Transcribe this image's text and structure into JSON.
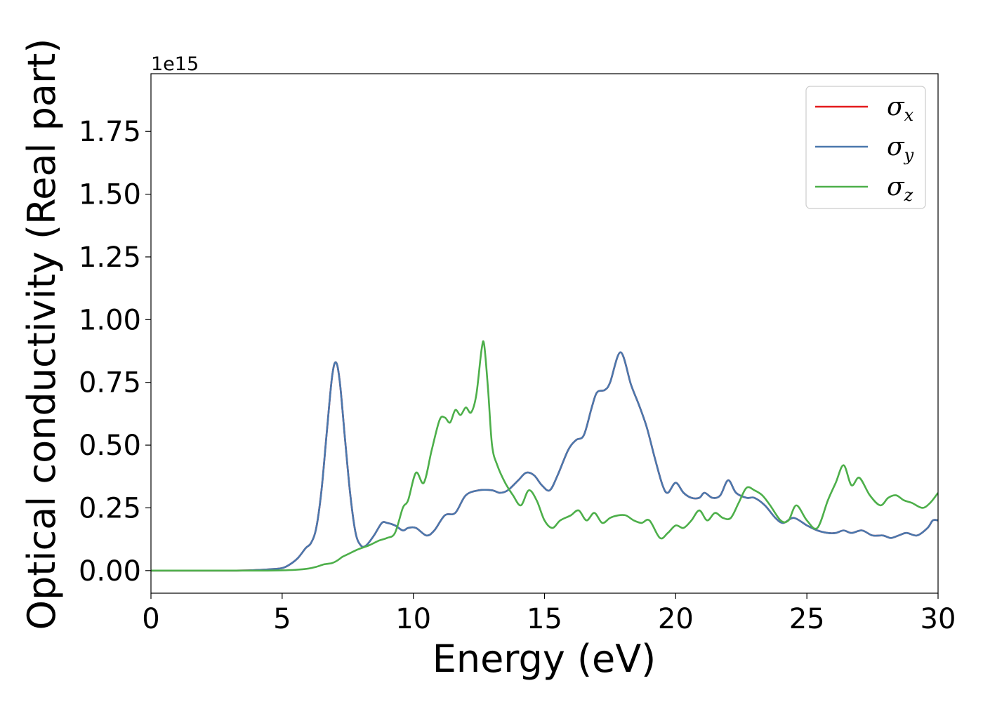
{
  "chart_data": {
    "type": "line",
    "title": "",
    "xlabel": "Energy (eV)",
    "ylabel": "Optical conductivity (Real part)",
    "y_offset_label": "1e15",
    "xlim": [
      0,
      30
    ],
    "ylim": [
      -0.09,
      1.98
    ],
    "x_ticks": [
      0,
      5,
      10,
      15,
      20,
      25,
      30
    ],
    "x_tick_labels": [
      "0",
      "5",
      "10",
      "15",
      "20",
      "25",
      "30"
    ],
    "y_ticks": [
      0.0,
      0.25,
      0.5,
      0.75,
      1.0,
      1.25,
      1.5,
      1.75
    ],
    "y_tick_labels": [
      "0.00",
      "0.25",
      "0.50",
      "0.75",
      "1.00",
      "1.25",
      "1.50",
      "1.75"
    ],
    "grid": false,
    "legend_position": "top-right",
    "series": [
      {
        "name": "σx",
        "legend_symbol": "σ",
        "legend_subscript": "x",
        "color": "#e41a1c",
        "x": [
          0,
          3,
          4,
          4.5,
          5,
          5.3,
          5.6,
          5.9,
          6.1,
          6.3,
          6.5,
          6.7,
          6.9,
          7.05,
          7.2,
          7.4,
          7.6,
          7.8,
          8.0,
          8.2,
          8.5,
          8.8,
          9.0,
          9.3,
          9.6,
          9.8,
          10.1,
          10.5,
          10.8,
          11.2,
          11.6,
          12.0,
          12.5,
          13.0,
          13.3,
          13.6,
          14.0,
          14.3,
          14.6,
          14.9,
          15.2,
          15.5,
          15.9,
          16.2,
          16.5,
          16.8,
          17.0,
          17.3,
          17.5,
          17.9,
          18.3,
          18.6,
          18.9,
          19.2,
          19.5,
          19.7,
          20.0,
          20.3,
          20.6,
          20.9,
          21.1,
          21.4,
          21.7,
          22.0,
          22.3,
          22.7,
          23.0,
          23.4,
          23.8,
          24.1,
          24.5,
          25.0,
          25.4,
          25.8,
          26.1,
          26.4,
          26.7,
          27.1,
          27.5,
          27.9,
          28.2,
          28.5,
          28.8,
          29.2,
          29.6,
          29.8,
          30.0
        ],
        "y": [
          0.0,
          0.0,
          0.002,
          0.005,
          0.01,
          0.025,
          0.05,
          0.09,
          0.11,
          0.17,
          0.32,
          0.55,
          0.77,
          0.83,
          0.75,
          0.52,
          0.3,
          0.15,
          0.1,
          0.1,
          0.14,
          0.19,
          0.19,
          0.18,
          0.16,
          0.17,
          0.17,
          0.14,
          0.16,
          0.22,
          0.23,
          0.3,
          0.32,
          0.32,
          0.31,
          0.32,
          0.36,
          0.39,
          0.38,
          0.34,
          0.32,
          0.38,
          0.48,
          0.52,
          0.54,
          0.65,
          0.71,
          0.72,
          0.75,
          0.87,
          0.74,
          0.66,
          0.57,
          0.45,
          0.34,
          0.31,
          0.35,
          0.31,
          0.29,
          0.29,
          0.31,
          0.29,
          0.3,
          0.36,
          0.31,
          0.29,
          0.29,
          0.26,
          0.21,
          0.19,
          0.21,
          0.18,
          0.16,
          0.15,
          0.15,
          0.16,
          0.15,
          0.16,
          0.14,
          0.14,
          0.13,
          0.14,
          0.15,
          0.14,
          0.17,
          0.2,
          0.2
        ]
      },
      {
        "name": "σy",
        "legend_symbol": "σ",
        "legend_subscript": "y",
        "color": "#4a78ad",
        "x": [
          0,
          3,
          4,
          4.5,
          5,
          5.3,
          5.6,
          5.9,
          6.1,
          6.3,
          6.5,
          6.7,
          6.9,
          7.05,
          7.2,
          7.4,
          7.6,
          7.8,
          8.0,
          8.2,
          8.5,
          8.8,
          9.0,
          9.3,
          9.6,
          9.8,
          10.1,
          10.5,
          10.8,
          11.2,
          11.6,
          12.0,
          12.5,
          13.0,
          13.3,
          13.6,
          14.0,
          14.3,
          14.6,
          14.9,
          15.2,
          15.5,
          15.9,
          16.2,
          16.5,
          16.8,
          17.0,
          17.3,
          17.5,
          17.9,
          18.3,
          18.6,
          18.9,
          19.2,
          19.5,
          19.7,
          20.0,
          20.3,
          20.6,
          20.9,
          21.1,
          21.4,
          21.7,
          22.0,
          22.3,
          22.7,
          23.0,
          23.4,
          23.8,
          24.1,
          24.5,
          25.0,
          25.4,
          25.8,
          26.1,
          26.4,
          26.7,
          27.1,
          27.5,
          27.9,
          28.2,
          28.5,
          28.8,
          29.2,
          29.6,
          29.8,
          30.0
        ],
        "y": [
          0.0,
          0.0,
          0.002,
          0.005,
          0.01,
          0.025,
          0.05,
          0.09,
          0.11,
          0.17,
          0.32,
          0.55,
          0.77,
          0.83,
          0.75,
          0.52,
          0.3,
          0.15,
          0.1,
          0.1,
          0.14,
          0.19,
          0.19,
          0.18,
          0.16,
          0.17,
          0.17,
          0.14,
          0.16,
          0.22,
          0.23,
          0.3,
          0.32,
          0.32,
          0.31,
          0.32,
          0.36,
          0.39,
          0.38,
          0.34,
          0.32,
          0.38,
          0.48,
          0.52,
          0.54,
          0.65,
          0.71,
          0.72,
          0.75,
          0.87,
          0.74,
          0.66,
          0.57,
          0.45,
          0.34,
          0.31,
          0.35,
          0.31,
          0.29,
          0.29,
          0.31,
          0.29,
          0.3,
          0.36,
          0.31,
          0.29,
          0.29,
          0.26,
          0.21,
          0.19,
          0.21,
          0.18,
          0.16,
          0.15,
          0.15,
          0.16,
          0.15,
          0.16,
          0.14,
          0.14,
          0.13,
          0.14,
          0.15,
          0.14,
          0.17,
          0.2,
          0.2
        ]
      },
      {
        "name": "σz",
        "legend_symbol": "σ",
        "legend_subscript": "z",
        "color": "#4daf4a",
        "x": [
          0,
          4,
          5,
          5.5,
          6,
          6.3,
          6.6,
          6.9,
          7.1,
          7.3,
          7.5,
          7.9,
          8.3,
          8.7,
          9.0,
          9.3,
          9.6,
          9.8,
          10.1,
          10.4,
          10.7,
          11.0,
          11.2,
          11.4,
          11.6,
          11.8,
          12.0,
          12.2,
          12.4,
          12.6,
          12.7,
          12.85,
          13.0,
          13.2,
          13.5,
          13.8,
          14.1,
          14.4,
          14.7,
          15.0,
          15.3,
          15.6,
          16.0,
          16.3,
          16.6,
          16.9,
          17.2,
          17.5,
          17.8,
          18.1,
          18.4,
          18.7,
          19.0,
          19.4,
          19.7,
          20.0,
          20.3,
          20.6,
          20.9,
          21.2,
          21.5,
          21.8,
          22.1,
          22.4,
          22.7,
          23.0,
          23.3,
          23.6,
          24.0,
          24.3,
          24.6,
          25.0,
          25.4,
          25.8,
          26.1,
          26.4,
          26.7,
          27.0,
          27.4,
          27.8,
          28.1,
          28.4,
          28.7,
          29.0,
          29.4,
          29.7,
          30.0
        ],
        "y": [
          0.0,
          0.0,
          0.001,
          0.003,
          0.008,
          0.015,
          0.025,
          0.03,
          0.04,
          0.055,
          0.065,
          0.085,
          0.1,
          0.12,
          0.13,
          0.15,
          0.25,
          0.28,
          0.39,
          0.35,
          0.48,
          0.6,
          0.61,
          0.59,
          0.64,
          0.62,
          0.65,
          0.63,
          0.7,
          0.88,
          0.9,
          0.72,
          0.5,
          0.42,
          0.35,
          0.3,
          0.26,
          0.32,
          0.28,
          0.2,
          0.17,
          0.2,
          0.22,
          0.24,
          0.2,
          0.23,
          0.19,
          0.21,
          0.22,
          0.22,
          0.2,
          0.19,
          0.2,
          0.13,
          0.15,
          0.18,
          0.17,
          0.2,
          0.24,
          0.2,
          0.23,
          0.21,
          0.21,
          0.27,
          0.33,
          0.32,
          0.3,
          0.26,
          0.2,
          0.2,
          0.26,
          0.2,
          0.17,
          0.28,
          0.35,
          0.42,
          0.34,
          0.37,
          0.3,
          0.26,
          0.29,
          0.3,
          0.28,
          0.27,
          0.25,
          0.27,
          0.31
        ]
      }
    ]
  }
}
